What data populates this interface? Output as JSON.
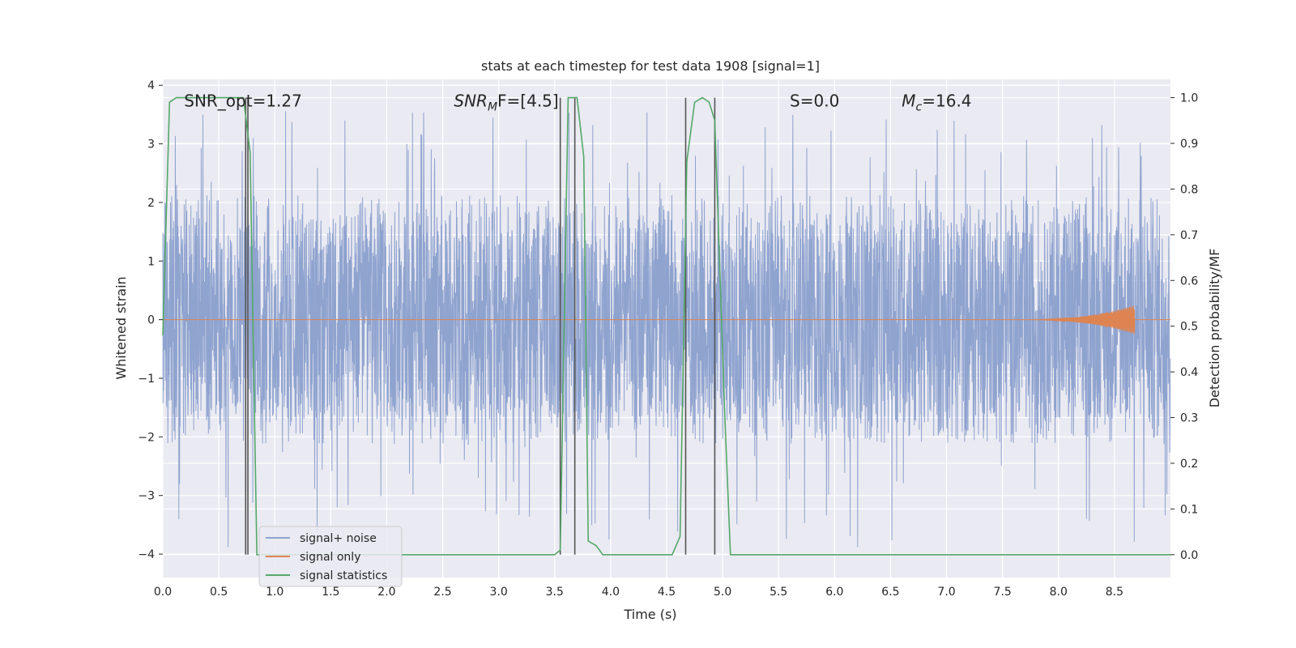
{
  "chart_data": {
    "type": "line",
    "title": "stats at each timestep for test data 1908 [signal=1]",
    "xlabel": "Time (s)",
    "ylabel": "Whitened strain",
    "y2label": "Detection probability/MF",
    "xlim": [
      0,
      9.0
    ],
    "ylim": [
      -4.4,
      4.1
    ],
    "y2lim": [
      -0.05,
      1.04
    ],
    "x_ticks": [
      "0.0",
      "0.5",
      "1.0",
      "1.5",
      "2.0",
      "2.5",
      "3.0",
      "3.5",
      "4.0",
      "4.5",
      "5.0",
      "5.5",
      "6.0",
      "6.5",
      "7.0",
      "7.5",
      "8.0",
      "8.5"
    ],
    "y_ticks": [
      "4",
      "3",
      "2",
      "1",
      "0",
      "−1",
      "−2",
      "−3",
      "−4"
    ],
    "y2_ticks": [
      "1.0",
      "0.9",
      "0.8",
      "0.7",
      "0.6",
      "0.5",
      "0.4",
      "0.3",
      "0.2",
      "0.1",
      "0.0"
    ],
    "grid": true,
    "legend_placement": "lower-left",
    "annotations": [
      {
        "label": "SNR_opt=1.27",
        "x": 0.19,
        "y": 3.75
      },
      {
        "label": "SNR",
        "sub": "M",
        "suffix": "F=[4.5]",
        "x": 2.6,
        "y": 3.75
      },
      {
        "label": "S",
        "suffix": "=0.0",
        "x": 5.6,
        "y": 3.75
      },
      {
        "label": "M",
        "sub": "c",
        "suffix": "=16.4",
        "x": 6.6,
        "y": 3.75
      }
    ],
    "vlines": [
      0.74,
      0.76,
      3.55,
      3.68,
      4.67,
      4.93
    ],
    "series": [
      {
        "name": "signal+ noise",
        "color": "#8fa3cf",
        "amplitude_band": [
          -1.7,
          1.7
        ],
        "spike_range": [
          -3.9,
          3.6
        ]
      },
      {
        "name": "signal only",
        "color": "#dd8452",
        "chirp_start": 7.5,
        "chirp_end": 8.68,
        "chirp_peak": 0.25
      },
      {
        "name": "signal statistics",
        "color": "#55a868",
        "axis": "right",
        "points": [
          [
            0.0,
            0.48
          ],
          [
            0.06,
            0.99
          ],
          [
            0.12,
            1.0
          ],
          [
            0.6,
            1.0
          ],
          [
            0.72,
            1.0
          ],
          [
            0.78,
            0.88
          ],
          [
            0.84,
            0.0
          ],
          [
            3.5,
            0.0
          ],
          [
            3.55,
            0.01
          ],
          [
            3.62,
            1.0
          ],
          [
            3.7,
            1.0
          ],
          [
            3.76,
            0.87
          ],
          [
            3.8,
            0.03
          ],
          [
            3.87,
            0.02
          ],
          [
            3.93,
            0.0
          ],
          [
            4.55,
            0.0
          ],
          [
            4.62,
            0.04
          ],
          [
            4.68,
            0.86
          ],
          [
            4.75,
            0.99
          ],
          [
            4.82,
            1.0
          ],
          [
            4.88,
            0.99
          ],
          [
            4.93,
            0.95
          ],
          [
            5.02,
            0.3
          ],
          [
            5.07,
            0.0
          ],
          [
            9.0,
            0.0
          ]
        ]
      }
    ]
  }
}
